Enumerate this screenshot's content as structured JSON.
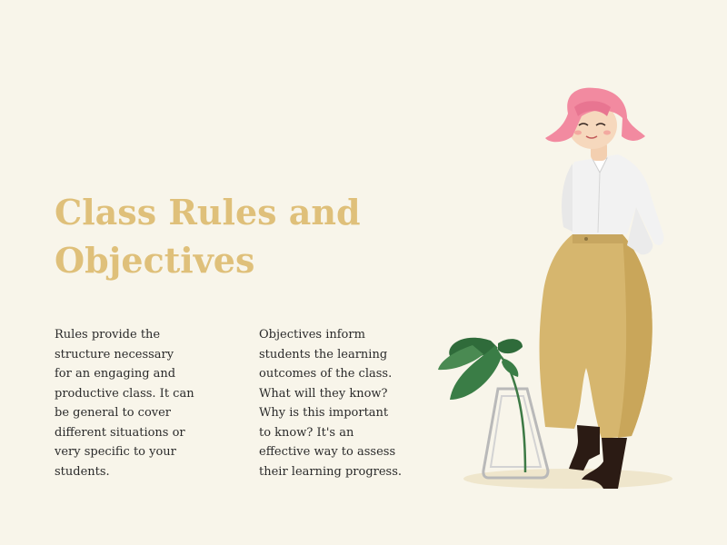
{
  "title": {
    "line1": "Class Rules and",
    "line2": "Objectives"
  },
  "rules_lines": [
    "Rules provide the",
    "structure necessary",
    "for an engaging and",
    "productive class. It can",
    "be general to cover",
    "different situations or",
    "very specific to your",
    "students."
  ],
  "objectives_lines": [
    "Objectives inform",
    "students the learning",
    "outcomes of the class.",
    "What will they know?",
    "Why is this important",
    "to know? It's an",
    "effective way to assess",
    "their learning progress."
  ],
  "colors": {
    "background": "#f8f5ea",
    "title": "#dfc07a",
    "body_text": "#2a2a2a",
    "hair": "#f28aa0",
    "pants": "#d6b66e",
    "leaf": "#2f6b3a"
  },
  "illustration": {
    "subject": "woman-with-plant-illustration"
  }
}
